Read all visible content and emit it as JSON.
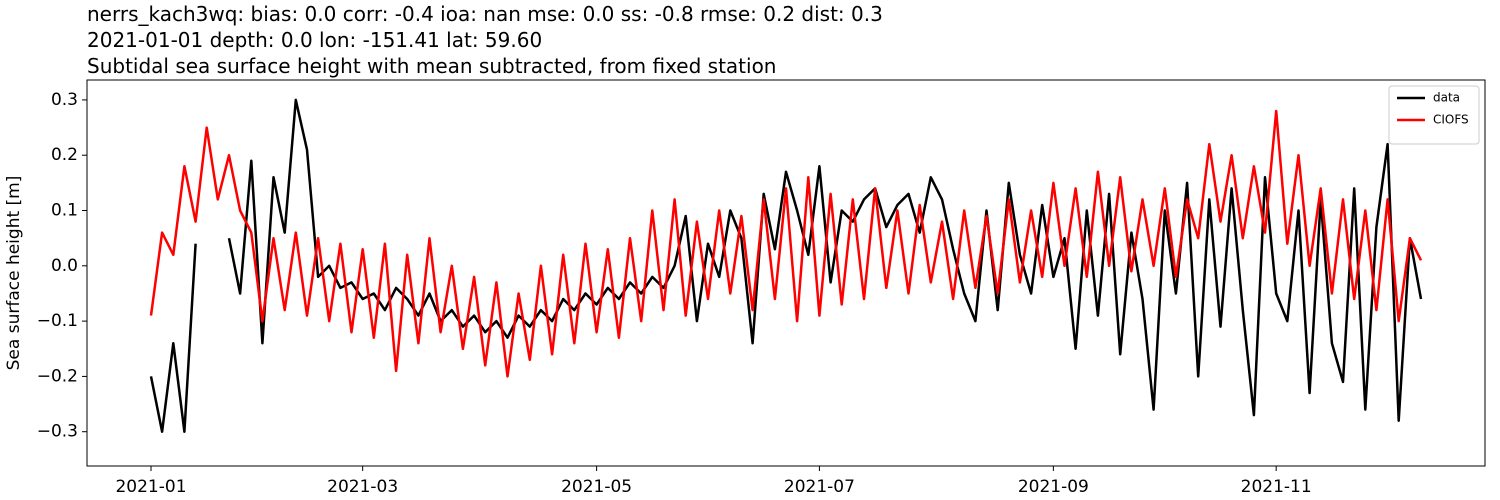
{
  "chart_data": {
    "type": "line",
    "title": "nerrs_kach3wq: bias: 0.0  corr: -0.4  ioa: nan  mse: 0.0  ss: -0.8  rmse: 0.2  dist: 0.3",
    "subtitle": [
      "2021-01-01 depth: 0.0 lon: -151.41 lat: 59.60",
      "Subtidal sea surface height with mean subtracted, from fixed station"
    ],
    "y_label": "Sea surface height [m]",
    "categories": [
      "2021-01",
      null,
      null,
      null,
      null,
      null,
      null,
      null,
      null,
      null,
      null,
      null,
      null,
      null,
      null,
      null,
      null,
      null,
      null,
      "2021-03",
      null,
      null,
      null,
      null,
      null,
      null,
      null,
      null,
      null,
      null,
      null,
      null,
      null,
      null,
      null,
      null,
      null,
      null,
      null,
      null,
      "2021-05",
      null,
      null,
      null,
      null,
      null,
      null,
      null,
      null,
      null,
      null,
      null,
      null,
      null,
      null,
      null,
      null,
      null,
      null,
      null,
      "2021-07",
      null,
      null,
      null,
      null,
      null,
      null,
      null,
      null,
      null,
      null,
      null,
      null,
      null,
      null,
      null,
      null,
      null,
      null,
      null,
      null,
      "2021-09",
      null,
      null,
      null,
      null,
      null,
      null,
      null,
      null,
      null,
      null,
      null,
      null,
      null,
      null,
      null,
      null,
      null,
      null,
      null,
      "2021-11",
      null,
      null,
      null,
      null,
      null,
      null,
      null,
      null,
      null,
      null,
      null,
      null,
      null
    ],
    "series": [
      {
        "name": "data",
        "color": "#000000",
        "values": [
          -0.2,
          -0.3,
          -0.14,
          -0.3,
          0.04,
          null,
          null,
          0.05,
          -0.05,
          0.19,
          -0.14,
          0.16,
          0.06,
          0.3,
          0.21,
          -0.02,
          0.0,
          -0.04,
          -0.03,
          -0.06,
          -0.05,
          -0.08,
          -0.04,
          -0.06,
          -0.09,
          -0.05,
          -0.1,
          -0.08,
          -0.11,
          -0.09,
          -0.12,
          -0.1,
          -0.13,
          -0.09,
          -0.11,
          -0.08,
          -0.1,
          -0.06,
          -0.08,
          -0.05,
          -0.07,
          -0.04,
          -0.06,
          -0.03,
          -0.05,
          -0.02,
          -0.04,
          0.0,
          0.09,
          -0.1,
          0.04,
          -0.02,
          0.1,
          0.05,
          -0.14,
          0.13,
          0.03,
          0.17,
          0.1,
          0.02,
          0.18,
          -0.03,
          0.1,
          0.08,
          0.12,
          0.14,
          0.07,
          0.11,
          0.13,
          0.06,
          0.16,
          0.12,
          0.03,
          -0.05,
          -0.1,
          0.1,
          -0.08,
          0.15,
          0.02,
          -0.05,
          0.11,
          -0.02,
          0.05,
          -0.15,
          0.1,
          -0.09,
          0.13,
          -0.16,
          0.06,
          -0.06,
          -0.26,
          0.1,
          -0.05,
          0.15,
          -0.2,
          0.12,
          -0.11,
          0.14,
          -0.08,
          -0.27,
          0.16,
          -0.05,
          -0.1,
          0.1,
          -0.23,
          0.12,
          -0.14,
          -0.21,
          0.14,
          -0.26,
          0.07,
          0.22,
          -0.28,
          0.05,
          -0.06
        ]
      },
      {
        "name": "CIOFS",
        "color": "#ff0000",
        "values": [
          -0.09,
          0.06,
          0.02,
          0.18,
          0.08,
          0.25,
          0.12,
          0.2,
          0.1,
          0.06,
          -0.1,
          0.05,
          -0.08,
          0.06,
          -0.09,
          0.05,
          -0.1,
          0.04,
          -0.12,
          0.03,
          -0.13,
          0.04,
          -0.19,
          0.02,
          -0.14,
          0.05,
          -0.12,
          0.0,
          -0.15,
          -0.02,
          -0.18,
          -0.03,
          -0.2,
          -0.05,
          -0.17,
          0.0,
          -0.16,
          0.02,
          -0.14,
          0.04,
          -0.12,
          0.03,
          -0.13,
          0.05,
          -0.1,
          0.1,
          -0.08,
          0.12,
          -0.09,
          0.08,
          -0.06,
          0.1,
          -0.05,
          0.09,
          -0.08,
          0.12,
          -0.06,
          0.14,
          -0.1,
          0.16,
          -0.09,
          0.13,
          -0.07,
          0.12,
          -0.06,
          0.14,
          -0.04,
          0.1,
          -0.05,
          0.11,
          -0.03,
          0.08,
          -0.06,
          0.1,
          -0.04,
          0.09,
          -0.05,
          0.12,
          -0.03,
          0.1,
          -0.02,
          0.15,
          0.0,
          0.14,
          -0.02,
          0.17,
          0.0,
          0.16,
          -0.01,
          0.12,
          0.0,
          0.14,
          -0.02,
          0.12,
          0.05,
          0.22,
          0.08,
          0.2,
          0.05,
          0.18,
          0.06,
          0.28,
          0.04,
          0.2,
          0.0,
          0.14,
          -0.05,
          0.12,
          -0.06,
          0.1,
          -0.08,
          0.12,
          -0.1,
          0.05,
          0.01
        ]
      }
    ],
    "ylim": [
      -0.362,
      0.336
    ],
    "yticks": [
      {
        "value": -0.3,
        "label": "−0.3"
      },
      {
        "value": -0.2,
        "label": "−0.2"
      },
      {
        "value": -0.1,
        "label": "−0.1"
      },
      {
        "value": 0,
        "label": "0.0"
      },
      0.1,
      0.2,
      0.3
    ],
    "grid": false,
    "legend": "upper right"
  }
}
